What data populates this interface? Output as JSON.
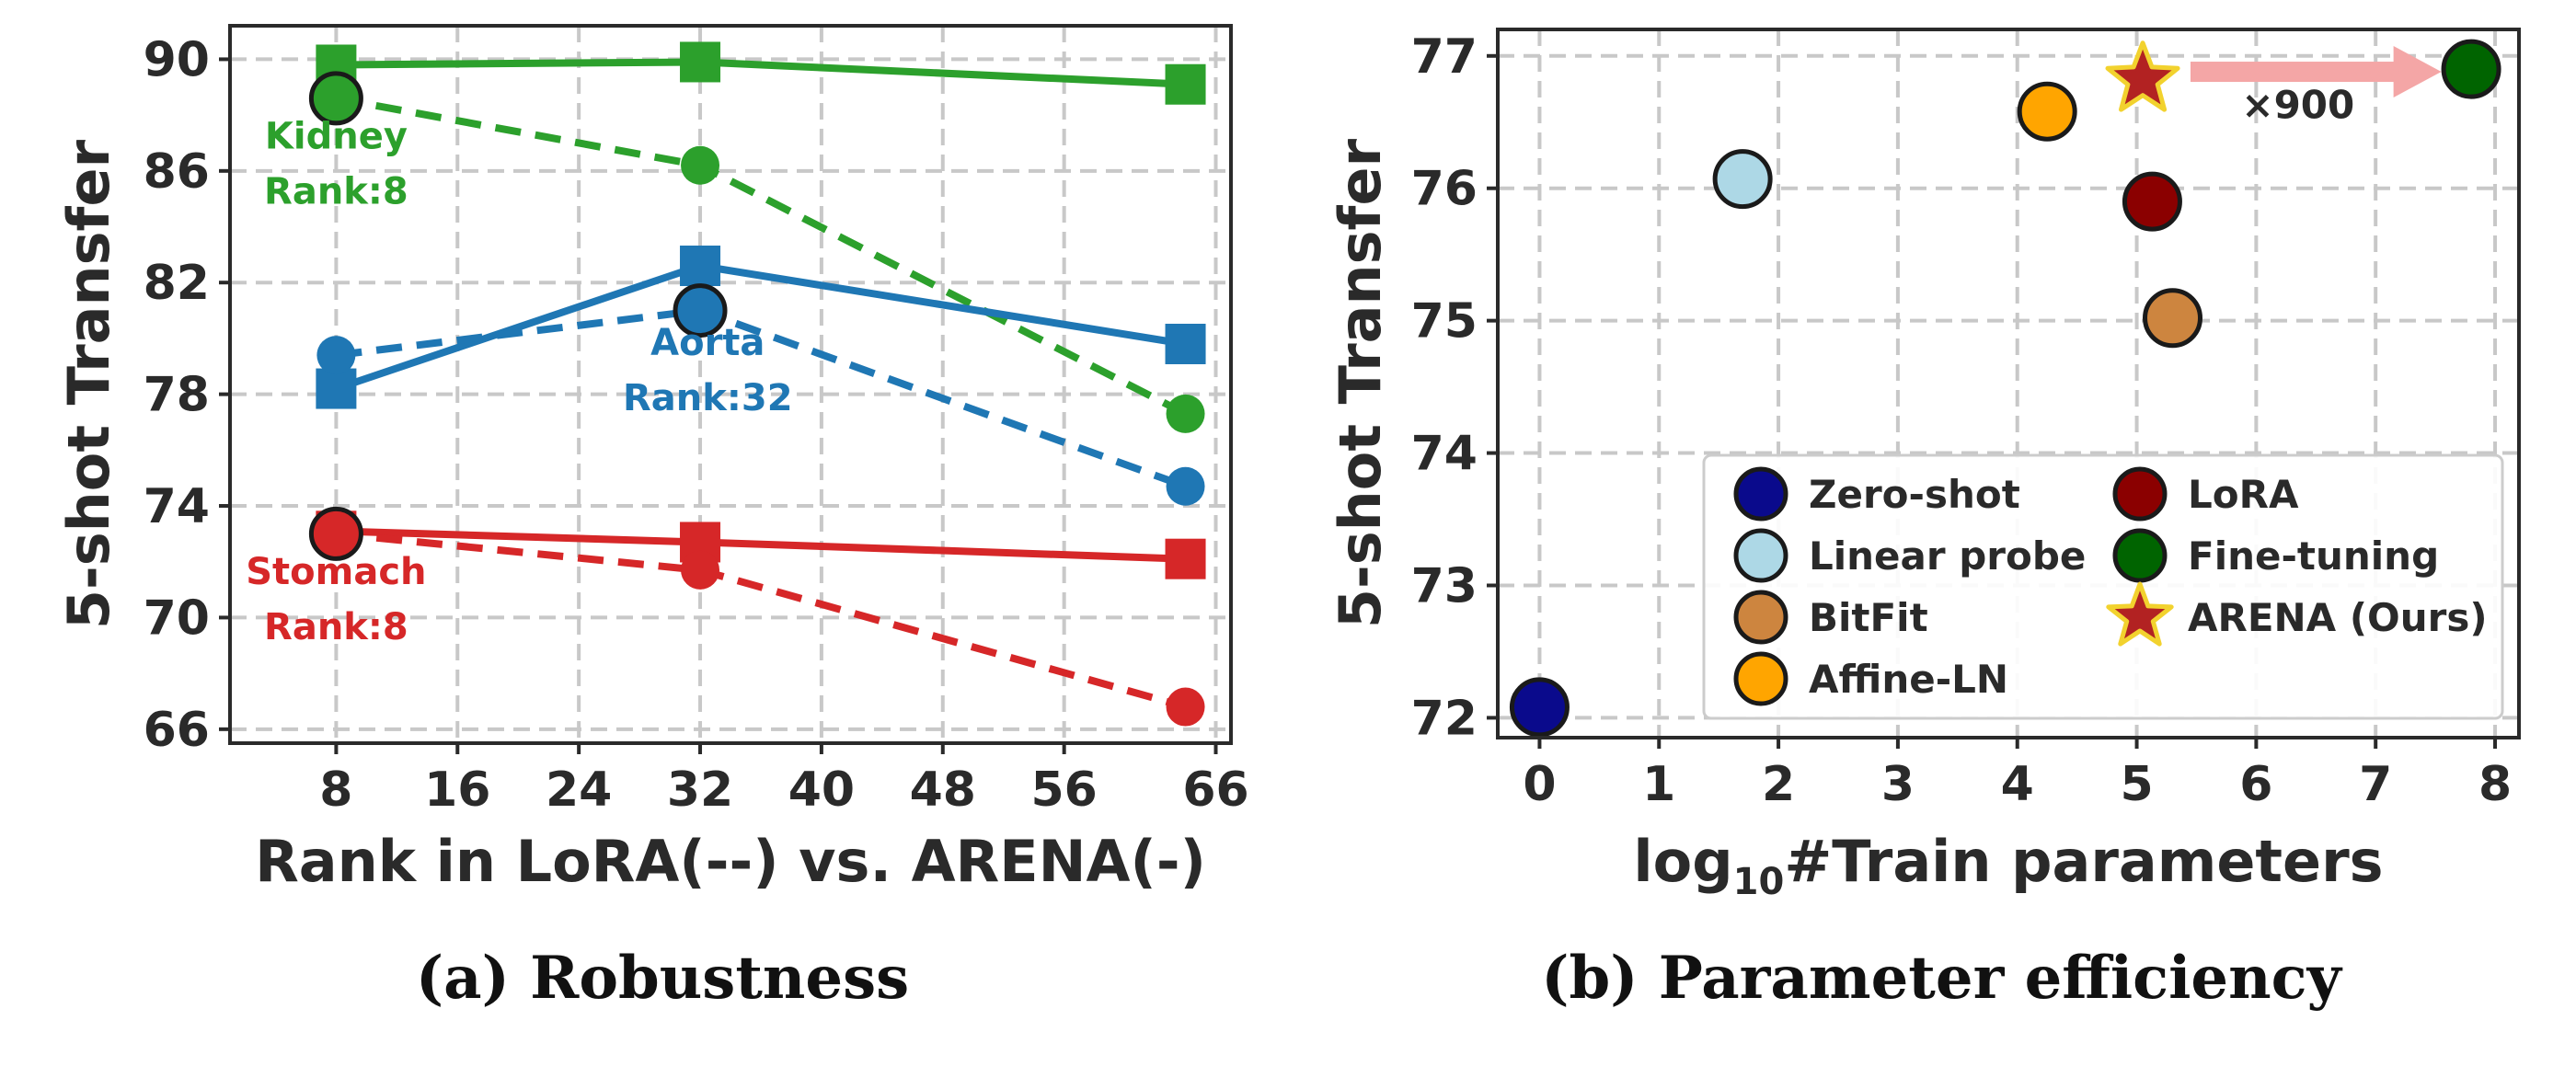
{
  "chart_data": [
    {
      "type": "line",
      "title": "",
      "caption": "(a) Robustness",
      "xlabel": "Rank in LoRA(--) vs. ARENA(-)",
      "ylabel": "5-shot Transfer",
      "xlim": [
        1,
        67
      ],
      "ylim": [
        65.5,
        91.2
      ],
      "xticks": [
        8,
        16,
        24,
        32,
        40,
        48,
        56,
        66
      ],
      "yticks": [
        66,
        70,
        74,
        78,
        82,
        86,
        90
      ],
      "grid": true,
      "series": [
        {
          "name": "Kidney ARENA",
          "style": "solid",
          "marker": "square",
          "color": "#2ca02c",
          "x": [
            8,
            32,
            64
          ],
          "y": [
            89.8,
            89.9,
            89.1
          ]
        },
        {
          "name": "Kidney LoRA",
          "style": "dashed",
          "marker": "circle",
          "color": "#2ca02c",
          "x": [
            8,
            32,
            64
          ],
          "y": [
            88.6,
            86.2,
            77.3
          ]
        },
        {
          "name": "Aorta ARENA",
          "style": "solid",
          "marker": "square",
          "color": "#1f77b4",
          "x": [
            8,
            32,
            64
          ],
          "y": [
            78.2,
            82.6,
            79.8
          ]
        },
        {
          "name": "Aorta LoRA",
          "style": "dashed",
          "marker": "circle",
          "color": "#1f77b4",
          "x": [
            8,
            32,
            64
          ],
          "y": [
            79.4,
            81.0,
            74.7
          ]
        },
        {
          "name": "Stomach ARENA",
          "style": "solid",
          "marker": "square",
          "color": "#d62728",
          "x": [
            8,
            32,
            64
          ],
          "y": [
            73.1,
            72.7,
            72.1
          ]
        },
        {
          "name": "Stomach LoRA",
          "style": "dashed",
          "marker": "circle",
          "color": "#d62728",
          "x": [
            8,
            32,
            64
          ],
          "y": [
            73.0,
            71.7,
            66.8
          ]
        }
      ],
      "highlights": [
        {
          "series": "Kidney LoRA",
          "x": 8,
          "y": 88.6
        },
        {
          "series": "Aorta LoRA",
          "x": 32,
          "y": 81.0
        },
        {
          "series": "Stomach LoRA",
          "x": 8,
          "y": 73.0
        }
      ],
      "annotations": [
        {
          "name": "Kidney",
          "line1": "Kidney",
          "line2": "Rank:8",
          "color": "#2ca02c",
          "x": 8,
          "y": 86.8
        },
        {
          "name": "Aorta",
          "line1": "Aorta",
          "line2": "Rank:32",
          "color": "#1f77b4",
          "x": 32.5,
          "y": 79.4
        },
        {
          "name": "Stomach",
          "line1": "Stomach",
          "line2": "Rank:8",
          "color": "#d62728",
          "x": 8,
          "y": 71.2
        }
      ]
    },
    {
      "type": "scatter",
      "title": "",
      "caption": "(b) Parameter efficiency",
      "xlabel": "log",
      "xlabel_sub": "10",
      "xlabel_rest": "#Train parameters",
      "ylabel": "5-shot Transfer",
      "xlim": [
        -0.35,
        8.2
      ],
      "ylim": [
        71.85,
        77.2
      ],
      "xticks": [
        0,
        1,
        2,
        3,
        4,
        5,
        6,
        7,
        8
      ],
      "yticks": [
        72,
        73,
        74,
        75,
        76,
        77
      ],
      "grid": true,
      "legend_position": "lower-right",
      "points": [
        {
          "name": "Zero-shot",
          "x": 0.0,
          "y": 72.08,
          "color": "#0a0a8c",
          "marker": "circle"
        },
        {
          "name": "Linear probe",
          "x": 1.7,
          "y": 76.07,
          "color": "#add8e6",
          "marker": "circle"
        },
        {
          "name": "BitFit",
          "x": 5.3,
          "y": 75.02,
          "color": "#cd853f",
          "marker": "circle"
        },
        {
          "name": "Affine-LN",
          "x": 4.25,
          "y": 76.58,
          "color": "#ffa500",
          "marker": "circle"
        },
        {
          "name": "LoRA",
          "x": 5.13,
          "y": 75.9,
          "color": "#8b0000",
          "marker": "circle"
        },
        {
          "name": "Fine-tuning",
          "x": 7.8,
          "y": 76.9,
          "color": "#006400",
          "marker": "circle"
        },
        {
          "name": "ARENA (Ours)",
          "x": 5.05,
          "y": 76.82,
          "color": "#b22222",
          "marker": "star"
        }
      ],
      "legend_order": [
        "Zero-shot",
        "LoRA",
        "Linear probe",
        "Fine-tuning",
        "BitFit",
        "ARENA (Ours)",
        "Affine-LN"
      ],
      "arrow": {
        "from_x": 5.45,
        "to_x": 7.55,
        "y": 76.88,
        "color": "#f4a6a6",
        "label": "×900",
        "label_x": 6.35,
        "label_y": 76.53
      }
    }
  ]
}
